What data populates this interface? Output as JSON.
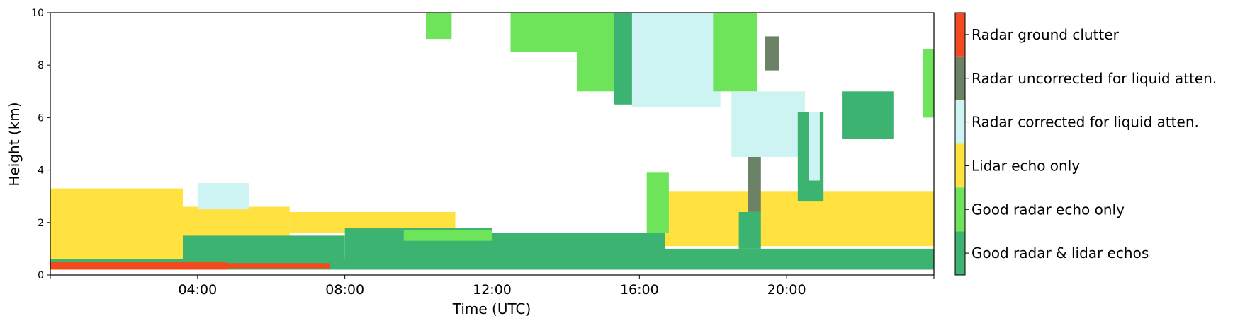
{
  "chart_data": {
    "type": "heatmap",
    "title": "",
    "xlabel": "Time (UTC)",
    "ylabel": "Height (km)",
    "xlim_hours": [
      0,
      24
    ],
    "ylim_km": [
      0,
      10
    ],
    "x_ticks": [
      {
        "hour": 0,
        "label": ""
      },
      {
        "hour": 4,
        "label": "04:00"
      },
      {
        "hour": 8,
        "label": "08:00"
      },
      {
        "hour": 12,
        "label": "12:00"
      },
      {
        "hour": 16,
        "label": "16:00"
      },
      {
        "hour": 20,
        "label": "20:00"
      },
      {
        "hour": 24,
        "label": ""
      }
    ],
    "y_ticks": [
      {
        "km": 0,
        "label": "0"
      },
      {
        "km": 2,
        "label": "2"
      },
      {
        "km": 4,
        "label": "4"
      },
      {
        "km": 6,
        "label": "6"
      },
      {
        "km": 8,
        "label": "8"
      },
      {
        "km": 10,
        "label": "10"
      }
    ],
    "legend_placement": "right colorbar",
    "categories": [
      {
        "label": "Good radar & lidar echos",
        "color": "#3cb371"
      },
      {
        "label": "Good radar echo only",
        "color": "#6ee45a"
      },
      {
        "label": "Lidar echo only",
        "color": "#ffe240"
      },
      {
        "label": "Radar corrected for liquid atten.",
        "color": "#cdf3f3"
      },
      {
        "label": "Radar uncorrected for liquid atten.",
        "color": "#6b8266"
      },
      {
        "label": "Radar ground clutter",
        "color": "#f04a1e"
      }
    ],
    "regions": [
      {
        "category": 2,
        "t0": 0.0,
        "t1": 3.6,
        "z0": 0.4,
        "z1": 3.3
      },
      {
        "category": 2,
        "t0": 3.6,
        "t1": 6.5,
        "z0": 1.2,
        "z1": 2.6
      },
      {
        "category": 2,
        "t0": 6.5,
        "t1": 11.0,
        "z0": 1.6,
        "z1": 2.4
      },
      {
        "category": 2,
        "t0": 16.7,
        "t1": 24.0,
        "z0": 1.1,
        "z1": 3.2
      },
      {
        "category": 0,
        "t0": 0.0,
        "t1": 24.0,
        "z0": 0.2,
        "z1": 0.6
      },
      {
        "category": 0,
        "t0": 3.6,
        "t1": 8.0,
        "z0": 0.4,
        "z1": 1.5
      },
      {
        "category": 0,
        "t0": 8.0,
        "t1": 12.0,
        "z0": 0.4,
        "z1": 1.8
      },
      {
        "category": 0,
        "t0": 12.0,
        "t1": 16.7,
        "z0": 0.4,
        "z1": 1.6
      },
      {
        "category": 0,
        "t0": 16.7,
        "t1": 24.0,
        "z0": 0.4,
        "z1": 1.0
      },
      {
        "category": 5,
        "t0": 0.0,
        "t1": 4.8,
        "z0": 0.2,
        "z1": 0.5
      },
      {
        "category": 5,
        "t0": 4.8,
        "t1": 7.6,
        "z0": 0.25,
        "z1": 0.45
      },
      {
        "category": 1,
        "t0": 10.2,
        "t1": 10.9,
        "z0": 9.0,
        "z1": 10.0
      },
      {
        "category": 1,
        "t0": 12.5,
        "t1": 14.3,
        "z0": 8.5,
        "z1": 10.0
      },
      {
        "category": 1,
        "t0": 14.3,
        "t1": 15.5,
        "z0": 7.0,
        "z1": 10.0
      },
      {
        "category": 0,
        "t0": 15.3,
        "t1": 16.0,
        "z0": 6.5,
        "z1": 10.0
      },
      {
        "category": 3,
        "t0": 15.8,
        "t1": 18.2,
        "z0": 6.4,
        "z1": 10.0
      },
      {
        "category": 1,
        "t0": 18.0,
        "t1": 19.2,
        "z0": 7.0,
        "z1": 10.0
      },
      {
        "category": 3,
        "t0": 18.5,
        "t1": 20.5,
        "z0": 4.5,
        "z1": 7.0
      },
      {
        "category": 4,
        "t0": 18.95,
        "t1": 19.3,
        "z0": 2.4,
        "z1": 4.5
      },
      {
        "category": 4,
        "t0": 19.4,
        "t1": 19.8,
        "z0": 7.8,
        "z1": 9.1
      },
      {
        "category": 0,
        "t0": 20.3,
        "t1": 21.0,
        "z0": 2.8,
        "z1": 6.2
      },
      {
        "category": 3,
        "t0": 20.6,
        "t1": 20.9,
        "z0": 3.6,
        "z1": 6.2
      },
      {
        "category": 0,
        "t0": 21.5,
        "t1": 22.9,
        "z0": 5.2,
        "z1": 7.0
      },
      {
        "category": 1,
        "t0": 23.7,
        "t1": 24.0,
        "z0": 6.0,
        "z1": 8.6
      },
      {
        "category": 0,
        "t0": 18.7,
        "t1": 19.3,
        "z0": 1.0,
        "z1": 2.4
      },
      {
        "category": 1,
        "t0": 9.6,
        "t1": 12.0,
        "z0": 1.3,
        "z1": 1.7
      },
      {
        "category": 3,
        "t0": 4.0,
        "t1": 5.4,
        "z0": 2.5,
        "z1": 3.5
      },
      {
        "category": 1,
        "t0": 16.2,
        "t1": 16.8,
        "z0": 1.6,
        "z1": 3.9
      }
    ]
  }
}
